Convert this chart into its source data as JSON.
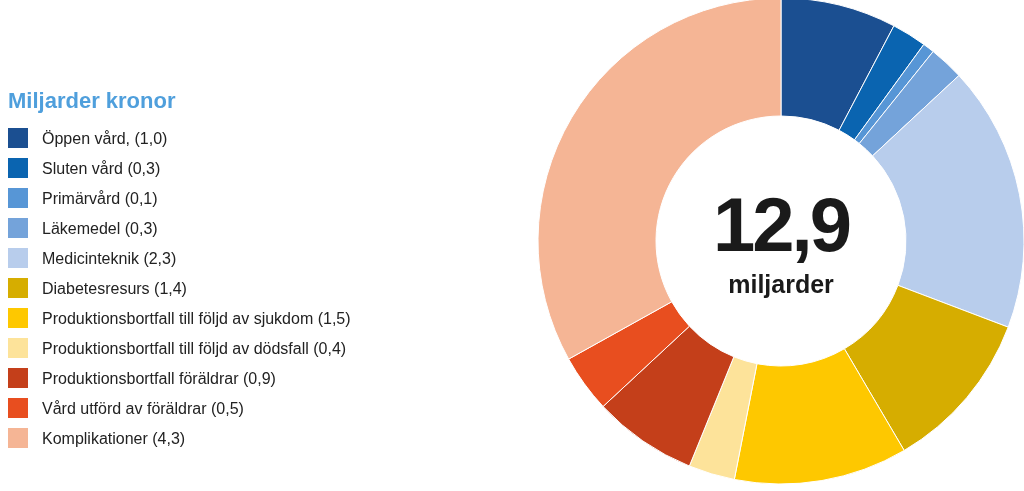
{
  "chart_data": {
    "type": "donut",
    "legend_title": "Miljarder kronor",
    "legend": "left",
    "categories": [
      "Öppen vård, (1,0)",
      "Sluten vård (0,3)",
      "Primärvård (0,1)",
      "Läkemedel (0,3)",
      "Medicinteknik (2,3)",
      "Diabetesresurs (1,4)",
      "Produktionsbortfall till följd av sjukdom (1,5)",
      "Produktionsbortfall till följd av dödsfall (0,4)",
      "Produktionsbortfall föräldrar (0,9)",
      "Vård utförd av föräldrar (0,5)",
      "Komplikationer (4,3)"
    ],
    "values": [
      1.0,
      0.3,
      0.1,
      0.3,
      2.3,
      1.4,
      1.5,
      0.4,
      0.9,
      0.5,
      4.3
    ],
    "colors": [
      "#1b4f91",
      "#0a64b0",
      "#5796d6",
      "#74a3da",
      "#b8cdec",
      "#d6ad00",
      "#fec800",
      "#fde39a",
      "#c43f1a",
      "#e84e1f",
      "#f5b595"
    ],
    "annotations": [
      "12,9",
      "miljarder"
    ]
  }
}
